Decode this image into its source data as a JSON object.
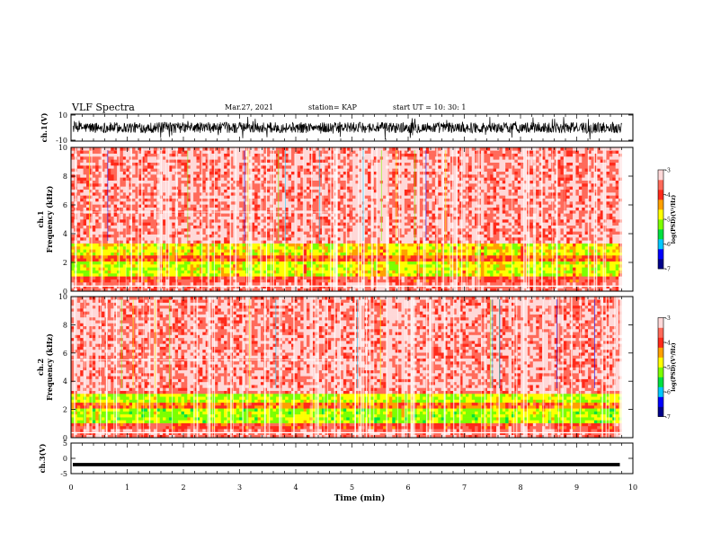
{
  "header": {
    "title": "VLF Spectra",
    "date": "Mar.27, 2021",
    "station": "station= KAP",
    "start_ut": "start  UT  =    10: 30: 1"
  },
  "colors": {
    "colormap": [
      "#00008a",
      "#0000ff",
      "#00c8ff",
      "#00e040",
      "#7cff00",
      "#ffff00",
      "#ffa000",
      "#ff2a1a",
      "#ff6a5a",
      "#ffd8d8"
    ],
    "waveform": "#000000",
    "background": "#ffffff"
  },
  "chart_data": [
    {
      "type": "line",
      "name": "ch.1 waveform",
      "ylabel": "ch.1(V)",
      "ylim": [
        -10,
        10
      ],
      "yticks": [
        "10",
        "-10"
      ],
      "xlim": [
        0,
        10
      ],
      "description_of_values": "dense noise approx -4 to 4 V"
    },
    {
      "type": "heatmap",
      "name": "ch.1 spectrogram",
      "ylabel": "ch.1\nFrequency  (kHz)",
      "ylim": [
        0,
        10
      ],
      "yticks": [
        "0",
        "2",
        "4",
        "6",
        "8",
        "10"
      ],
      "xlim": [
        0,
        9.8
      ],
      "bands": [
        {
          "freq_range": [
            0,
            0.6
          ],
          "level": -3.6
        },
        {
          "freq_range": [
            0.6,
            1.0
          ],
          "level": -3.9
        },
        {
          "freq_range": [
            1.0,
            2.0
          ],
          "level": -4.9
        },
        {
          "freq_range": [
            2.0,
            2.4
          ],
          "level": -4.2
        },
        {
          "freq_range": [
            2.4,
            3.3
          ],
          "level": -4.8
        },
        {
          "freq_range": [
            3.3,
            10.0
          ],
          "level": -3.6
        }
      ],
      "colorbar": {
        "label": "log(PSD)(V²/Hz)",
        "range": [
          -7,
          -3
        ],
        "ticks": [
          "-3",
          "-4",
          "-5",
          "-6",
          "-7"
        ]
      }
    },
    {
      "type": "heatmap",
      "name": "ch.2 spectrogram",
      "ylabel": "ch.2\nFrequency  (kHz)",
      "ylim": [
        0,
        10
      ],
      "yticks": [
        "0",
        "2",
        "4",
        "6",
        "8",
        "10"
      ],
      "xlim": [
        0,
        9.8
      ],
      "bands": [
        {
          "freq_range": [
            0,
            0.6
          ],
          "level": -3.6
        },
        {
          "freq_range": [
            0.6,
            1.0
          ],
          "level": -3.9
        },
        {
          "freq_range": [
            1.0,
            2.0
          ],
          "level": -5.1
        },
        {
          "freq_range": [
            2.0,
            2.4
          ],
          "level": -4.3
        },
        {
          "freq_range": [
            2.4,
            3.2
          ],
          "level": -5.0
        },
        {
          "freq_range": [
            3.2,
            10.0
          ],
          "level": -3.6
        }
      ],
      "colorbar": {
        "label": "log(PSD)(V²/Hz)",
        "range": [
          -7,
          -3
        ],
        "ticks": [
          "-3",
          "-4",
          "-5",
          "-6",
          "-7"
        ]
      }
    },
    {
      "type": "line",
      "name": "ch.3 waveform",
      "ylabel": "ch.3(V)",
      "ylim": [
        -5,
        5
      ],
      "yticks": [
        "5",
        "0",
        "-5"
      ],
      "xlim": [
        0,
        10
      ],
      "description_of_values": "constant near -2 V with small noise"
    }
  ],
  "xaxis": {
    "label": "Time  (min)",
    "ticks": [
      "0",
      "1",
      "2",
      "3",
      "4",
      "5",
      "6",
      "7",
      "8",
      "9",
      "10"
    ],
    "range": [
      0,
      10
    ]
  }
}
